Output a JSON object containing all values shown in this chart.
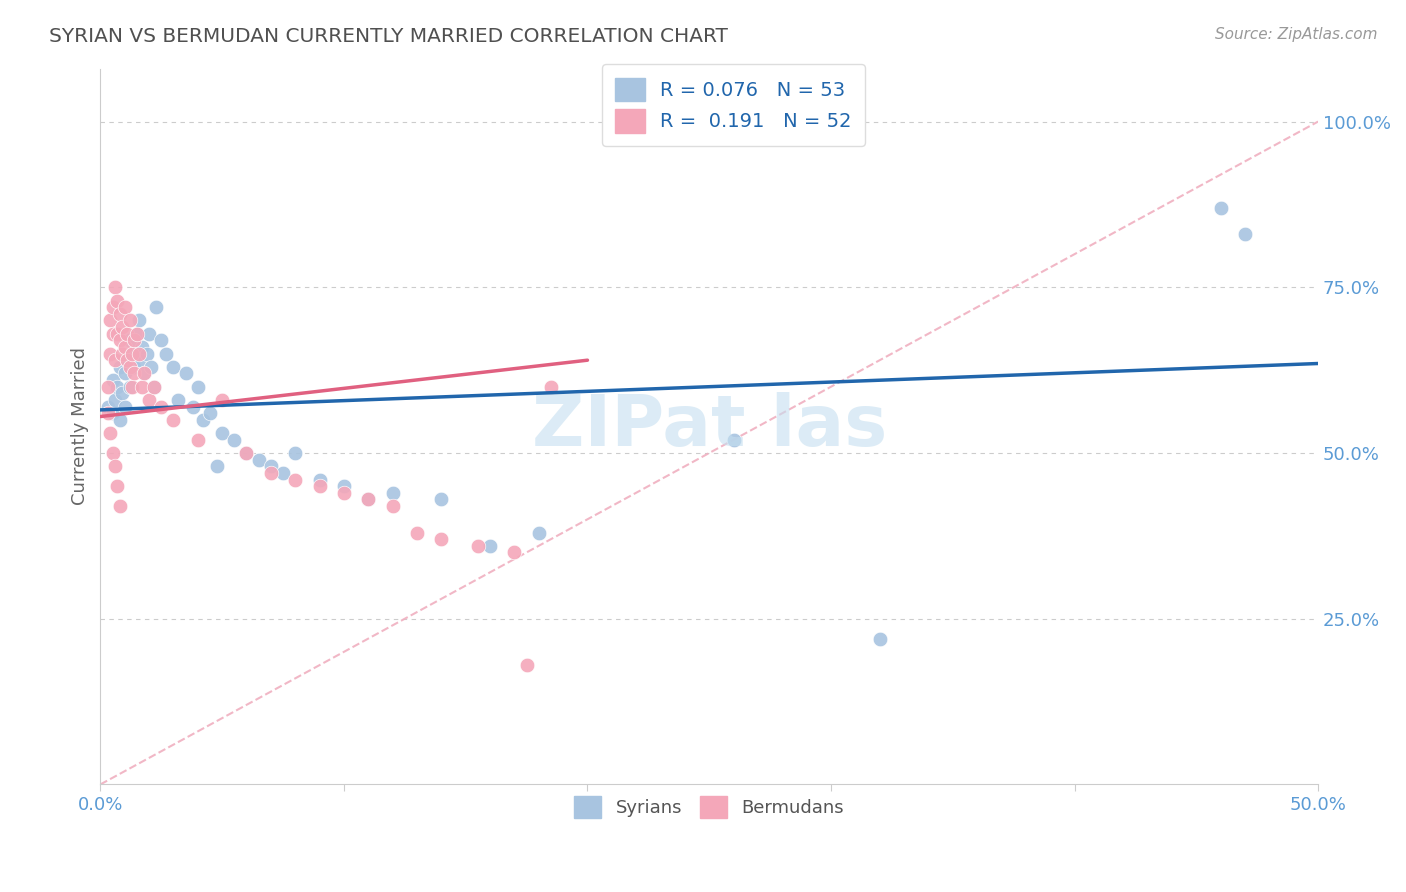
{
  "title": "SYRIAN VS BERMUDAN CURRENTLY MARRIED CORRELATION CHART",
  "source": "Source: ZipAtlas.com",
  "xlabel_syrians": "Syrians",
  "xlabel_bermudans": "Bermudans",
  "ylabel": "Currently Married",
  "xlim": [
    0.0,
    0.5
  ],
  "ylim": [
    0.0,
    1.05
  ],
  "ytick_positions": [
    0.25,
    0.5,
    0.75,
    1.0
  ],
  "ytick_labels": [
    "25.0%",
    "50.0%",
    "75.0%",
    "100.0%"
  ],
  "xtick_positions": [
    0.0,
    0.1,
    0.2,
    0.3,
    0.4,
    0.5
  ],
  "xtick_labels": [
    "0.0%",
    "",
    "",
    "",
    "",
    "50.0%"
  ],
  "legend_line1": "R = 0.076   N = 53",
  "legend_line2": "R =  0.191   N = 52",
  "blue_scatter_color": "#a8c4e0",
  "pink_scatter_color": "#f4a7b9",
  "blue_line_color": "#2166ac",
  "pink_line_color": "#e06080",
  "ref_line_color": "#f0b0c0",
  "grid_color": "#cccccc",
  "title_color": "#505050",
  "tick_color": "#5b9bd5",
  "watermark_color": "#c5dff0",
  "syrians_x": [
    0.003,
    0.005,
    0.005,
    0.006,
    0.007,
    0.008,
    0.008,
    0.009,
    0.01,
    0.01,
    0.011,
    0.012,
    0.012,
    0.013,
    0.014,
    0.015,
    0.016,
    0.016,
    0.017,
    0.018,
    0.019,
    0.02,
    0.021,
    0.022,
    0.023,
    0.025,
    0.027,
    0.03,
    0.032,
    0.035,
    0.038,
    0.04,
    0.042,
    0.045,
    0.048,
    0.05,
    0.055,
    0.06,
    0.065,
    0.07,
    0.075,
    0.08,
    0.09,
    0.1,
    0.11,
    0.12,
    0.14,
    0.16,
    0.18,
    0.26,
    0.32,
    0.46,
    0.47
  ],
  "syrians_y": [
    0.57,
    0.61,
    0.56,
    0.58,
    0.6,
    0.55,
    0.63,
    0.59,
    0.62,
    0.57,
    0.64,
    0.6,
    0.67,
    0.65,
    0.63,
    0.68,
    0.64,
    0.7,
    0.66,
    0.62,
    0.65,
    0.68,
    0.63,
    0.6,
    0.72,
    0.67,
    0.65,
    0.63,
    0.58,
    0.62,
    0.57,
    0.6,
    0.55,
    0.56,
    0.48,
    0.53,
    0.52,
    0.5,
    0.49,
    0.48,
    0.47,
    0.5,
    0.46,
    0.45,
    0.43,
    0.44,
    0.43,
    0.36,
    0.38,
    0.52,
    0.22,
    0.87,
    0.83
  ],
  "bermudans_x": [
    0.003,
    0.004,
    0.004,
    0.005,
    0.005,
    0.006,
    0.006,
    0.007,
    0.007,
    0.008,
    0.008,
    0.009,
    0.009,
    0.01,
    0.01,
    0.011,
    0.011,
    0.012,
    0.012,
    0.013,
    0.013,
    0.014,
    0.014,
    0.015,
    0.016,
    0.017,
    0.018,
    0.02,
    0.022,
    0.025,
    0.03,
    0.04,
    0.05,
    0.06,
    0.07,
    0.08,
    0.09,
    0.1,
    0.11,
    0.12,
    0.13,
    0.14,
    0.155,
    0.17,
    0.185,
    0.003,
    0.004,
    0.005,
    0.006,
    0.007,
    0.008,
    0.175
  ],
  "bermudans_y": [
    0.6,
    0.65,
    0.7,
    0.68,
    0.72,
    0.64,
    0.75,
    0.68,
    0.73,
    0.67,
    0.71,
    0.65,
    0.69,
    0.66,
    0.72,
    0.64,
    0.68,
    0.63,
    0.7,
    0.65,
    0.6,
    0.67,
    0.62,
    0.68,
    0.65,
    0.6,
    0.62,
    0.58,
    0.6,
    0.57,
    0.55,
    0.52,
    0.58,
    0.5,
    0.47,
    0.46,
    0.45,
    0.44,
    0.43,
    0.42,
    0.38,
    0.37,
    0.36,
    0.35,
    0.6,
    0.56,
    0.53,
    0.5,
    0.48,
    0.45,
    0.42,
    0.18
  ],
  "blue_trend_x": [
    0.0,
    0.5
  ],
  "blue_trend_y": [
    0.565,
    0.635
  ],
  "pink_trend_x": [
    0.0,
    0.2
  ],
  "pink_trend_y": [
    0.555,
    0.64
  ]
}
